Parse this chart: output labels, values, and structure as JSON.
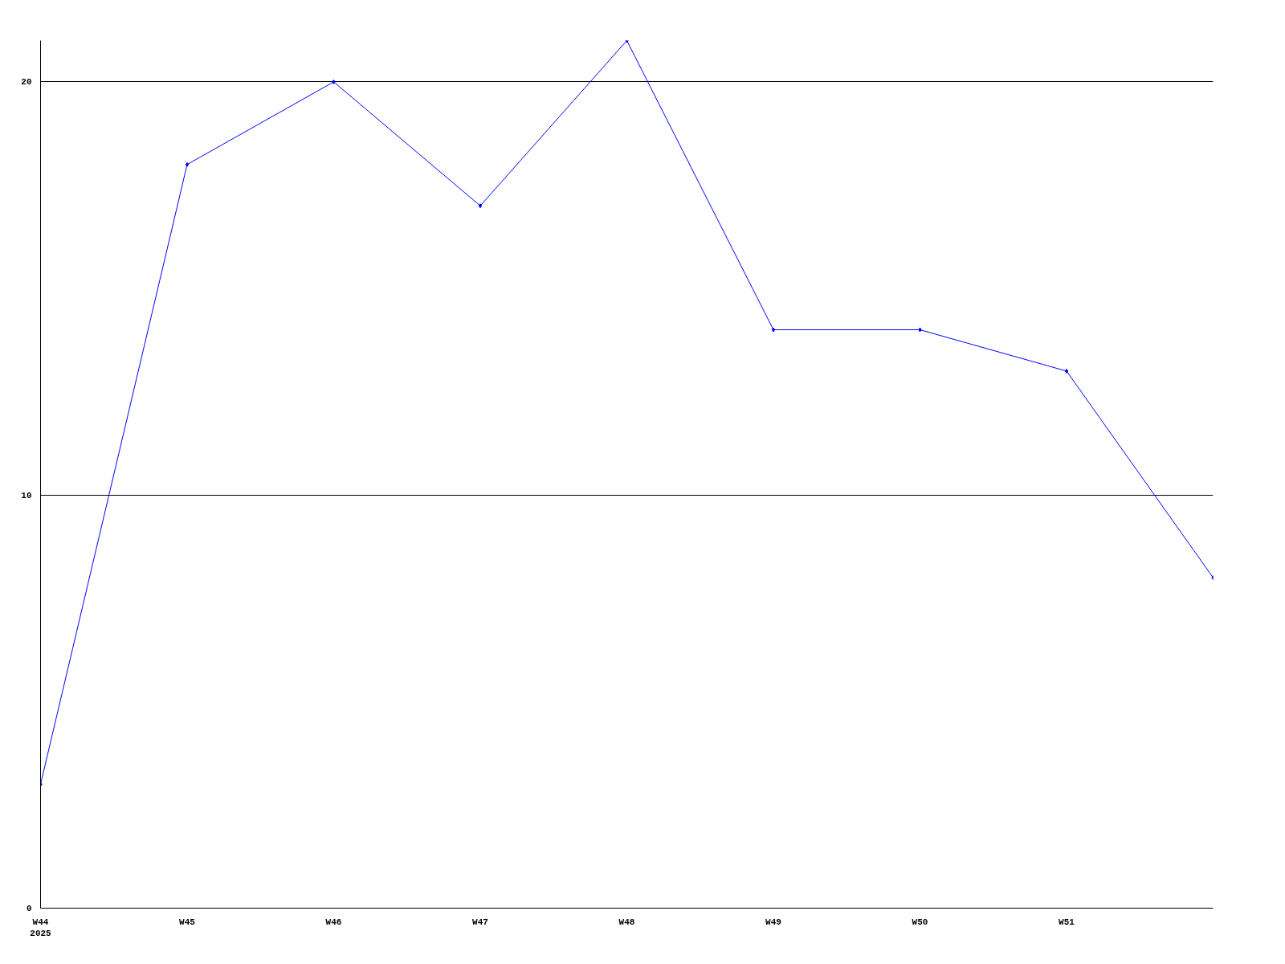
{
  "chart_data": {
    "type": "line",
    "categories": [
      "W44\n2025",
      "W45",
      "W46",
      "W47",
      "W48",
      "W49",
      "W50",
      "W51",
      null
    ],
    "series": [
      {
        "color": "#0000ff",
        "values": [
          3,
          18,
          20,
          17,
          21,
          14,
          14,
          13,
          8
        ]
      }
    ],
    "ylim": [
      0,
      21
    ],
    "yticks": [
      0,
      10,
      20
    ],
    "grid": "y",
    "marker": "diamond",
    "line_style": "solid"
  }
}
